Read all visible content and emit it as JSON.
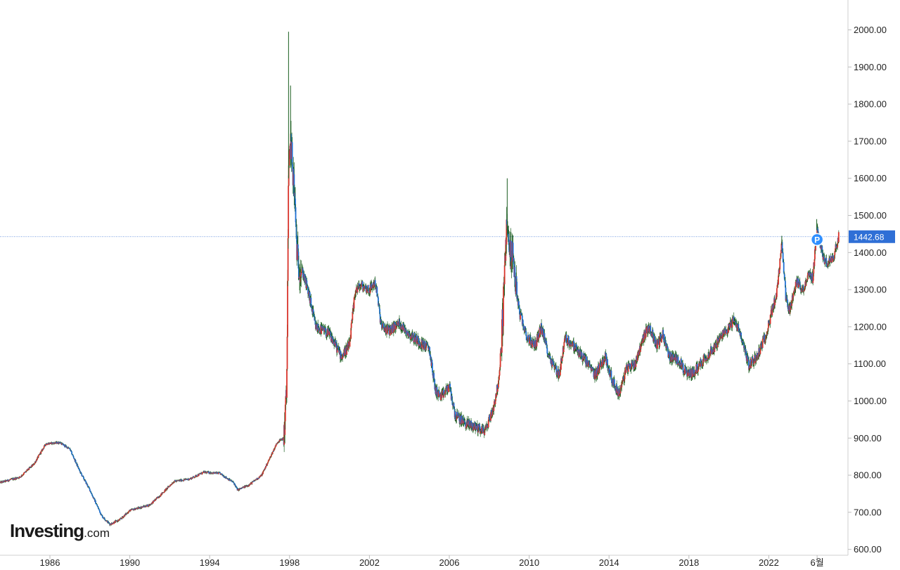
{
  "logo": {
    "main": "Investing",
    "suffix": ".com"
  },
  "colors": {
    "up": "#d9342b",
    "down": "#1e6fd4",
    "wick": "#1b5e20",
    "axis": "#cfcfcf",
    "current_line": "#4a7bd6",
    "badge": "#2f6fd6",
    "marker": "#2f8fff"
  },
  "chart_data": {
    "type": "candlestick",
    "title": "",
    "xlabel": "",
    "ylabel": "",
    "ylim": [
      600,
      2000
    ],
    "x_range": [
      1983.5,
      2025.5
    ],
    "y_ticks": [
      "600.00",
      "700.00",
      "800.00",
      "900.00",
      "1000.00",
      "1100.00",
      "1200.00",
      "1300.00",
      "1400.00",
      "1500.00",
      "1600.00",
      "1700.00",
      "1800.00",
      "1900.00",
      "2000.00"
    ],
    "x_ticks": [
      {
        "label": "1986",
        "x": 1986
      },
      {
        "label": "1990",
        "x": 1990
      },
      {
        "label": "1994",
        "x": 1994
      },
      {
        "label": "1998",
        "x": 1998
      },
      {
        "label": "2002",
        "x": 2002
      },
      {
        "label": "2006",
        "x": 2006
      },
      {
        "label": "2010",
        "x": 2010
      },
      {
        "label": "2014",
        "x": 2014
      },
      {
        "label": "2018",
        "x": 2018
      },
      {
        "label": "2022",
        "x": 2022
      },
      {
        "label": "6월",
        "x": 2024.42
      }
    ],
    "current_price": 1442.68,
    "current_price_label": "1442.68",
    "marker_label": "P",
    "marker": {
      "x": 2024.42,
      "y": 1435
    },
    "anchors": [
      [
        1983.5,
        780
      ],
      [
        1984.5,
        795
      ],
      [
        1985.2,
        830
      ],
      [
        1985.8,
        885
      ],
      [
        1986.5,
        888
      ],
      [
        1987.0,
        870
      ],
      [
        1987.5,
        810
      ],
      [
        1988.0,
        760
      ],
      [
        1988.6,
        690
      ],
      [
        1989.0,
        668
      ],
      [
        1989.5,
        680
      ],
      [
        1990.0,
        705
      ],
      [
        1991.0,
        720
      ],
      [
        1991.6,
        750
      ],
      [
        1992.2,
        783
      ],
      [
        1993.0,
        790
      ],
      [
        1993.7,
        808
      ],
      [
        1994.5,
        805
      ],
      [
        1995.2,
        780
      ],
      [
        1995.4,
        760
      ],
      [
        1996.0,
        775
      ],
      [
        1996.6,
        800
      ],
      [
        1997.0,
        845
      ],
      [
        1997.4,
        890
      ],
      [
        1997.7,
        900
      ],
      [
        1997.85,
        1010
      ],
      [
        1997.95,
        1600
      ],
      [
        1998.05,
        1700
      ],
      [
        1998.2,
        1600
      ],
      [
        1998.4,
        1380
      ],
      [
        1998.7,
        1340
      ],
      [
        1999.0,
        1280
      ],
      [
        1999.3,
        1200
      ],
      [
        2000.0,
        1180
      ],
      [
        2000.6,
        1120
      ],
      [
        2001.0,
        1150
      ],
      [
        2001.3,
        1300
      ],
      [
        2001.6,
        1310
      ],
      [
        2002.0,
        1300
      ],
      [
        2002.3,
        1320
      ],
      [
        2002.6,
        1200
      ],
      [
        2003.0,
        1190
      ],
      [
        2003.5,
        1210
      ],
      [
        2004.0,
        1180
      ],
      [
        2004.5,
        1160
      ],
      [
        2005.0,
        1140
      ],
      [
        2005.3,
        1030
      ],
      [
        2005.6,
        1010
      ],
      [
        2006.0,
        1040
      ],
      [
        2006.3,
        960
      ],
      [
        2006.8,
        940
      ],
      [
        2007.3,
        930
      ],
      [
        2007.8,
        920
      ],
      [
        2008.2,
        980
      ],
      [
        2008.5,
        1060
      ],
      [
        2008.7,
        1250
      ],
      [
        2008.85,
        1460
      ],
      [
        2009.0,
        1420
      ],
      [
        2009.2,
        1380
      ],
      [
        2009.5,
        1240
      ],
      [
        2009.9,
        1170
      ],
      [
        2010.3,
        1150
      ],
      [
        2010.6,
        1200
      ],
      [
        2011.0,
        1120
      ],
      [
        2011.5,
        1070
      ],
      [
        2011.8,
        1170
      ],
      [
        2012.2,
        1150
      ],
      [
        2012.8,
        1110
      ],
      [
        2013.3,
        1070
      ],
      [
        2013.8,
        1120
      ],
      [
        2014.2,
        1050
      ],
      [
        2014.5,
        1020
      ],
      [
        2014.9,
        1090
      ],
      [
        2015.3,
        1100
      ],
      [
        2015.7,
        1170
      ],
      [
        2016.0,
        1200
      ],
      [
        2016.4,
        1150
      ],
      [
        2016.7,
        1180
      ],
      [
        2017.0,
        1120
      ],
      [
        2017.5,
        1110
      ],
      [
        2017.9,
        1070
      ],
      [
        2018.3,
        1080
      ],
      [
        2018.7,
        1110
      ],
      [
        2019.2,
        1140
      ],
      [
        2019.6,
        1170
      ],
      [
        2020.0,
        1200
      ],
      [
        2020.3,
        1220
      ],
      [
        2020.8,
        1140
      ],
      [
        2021.0,
        1095
      ],
      [
        2021.4,
        1120
      ],
      [
        2021.8,
        1170
      ],
      [
        2022.1,
        1230
      ],
      [
        2022.4,
        1290
      ],
      [
        2022.65,
        1420
      ],
      [
        2022.85,
        1280
      ],
      [
        2023.0,
        1240
      ],
      [
        2023.4,
        1320
      ],
      [
        2023.7,
        1300
      ],
      [
        2024.0,
        1340
      ],
      [
        2024.2,
        1330
      ],
      [
        2024.4,
        1460
      ],
      [
        2024.6,
        1420
      ],
      [
        2024.8,
        1370
      ],
      [
        2025.2,
        1380
      ],
      [
        2025.5,
        1442.68
      ]
    ],
    "spikes": [
      {
        "x": 1997.95,
        "high": 1995
      },
      {
        "x": 1998.05,
        "high": 1850
      },
      {
        "x": 2008.9,
        "high": 1600
      },
      {
        "x": 2022.65,
        "high": 1445
      },
      {
        "x": 2024.4,
        "high": 1490
      }
    ]
  }
}
